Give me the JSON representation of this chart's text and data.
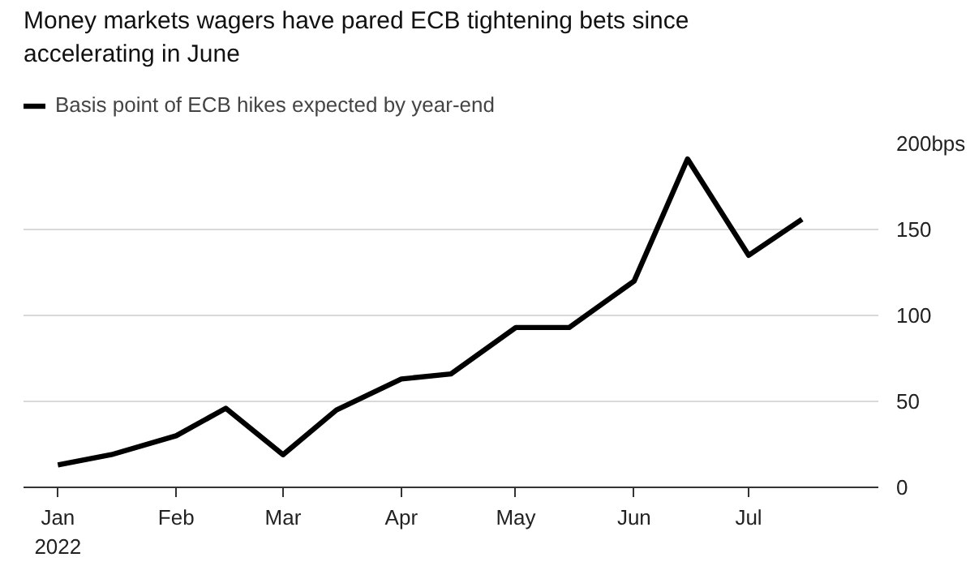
{
  "chart_data": {
    "type": "line",
    "title": "Money markets wagers have pared ECB tightening bets since accelerating in June",
    "x": [
      "2022-01-01",
      "2022-01-15",
      "2022-02-01",
      "2022-02-14",
      "2022-03-01",
      "2022-03-15",
      "2022-04-01",
      "2022-04-14",
      "2022-05-01",
      "2022-05-15",
      "2022-06-01",
      "2022-06-15",
      "2022-07-01",
      "2022-07-15"
    ],
    "series": [
      {
        "name": "Basis point of ECB hikes expected by year-end",
        "color": "#000000",
        "values": [
          13,
          19,
          30,
          46,
          19,
          45,
          63,
          66,
          93,
          93,
          120,
          191,
          135,
          156
        ]
      }
    ],
    "xlim": [
      "2021-12-23",
      "2022-08-04"
    ],
    "xticks": [
      {
        "value": "2022-01-01",
        "label": "Jan\n2022"
      },
      {
        "value": "2022-02-01",
        "label": "Feb"
      },
      {
        "value": "2022-03-01",
        "label": "Mar"
      },
      {
        "value": "2022-04-01",
        "label": "Apr"
      },
      {
        "value": "2022-05-01",
        "label": "May"
      },
      {
        "value": "2022-06-01",
        "label": "Jun"
      },
      {
        "value": "2022-07-01",
        "label": "Jul"
      }
    ],
    "ylim": [
      0,
      200
    ],
    "yticks": [
      0,
      50,
      100,
      150,
      {
        "value": 200,
        "label": "200bps"
      }
    ],
    "grid": "y",
    "legend": "top left",
    "marker": "none",
    "line_style": "solid"
  }
}
